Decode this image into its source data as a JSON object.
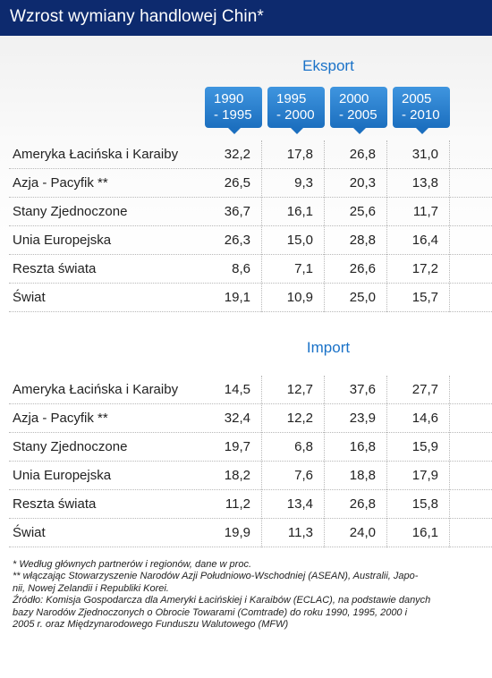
{
  "title": "Wzrost wymiany handlowej Chin*",
  "chart_data": {
    "type": "table",
    "periods": [
      "1990\n- 1995",
      "1995\n- 2000",
      "2000\n- 2005",
      "2005\n- 2010"
    ],
    "sections": [
      {
        "name": "Eksport",
        "rows": [
          {
            "label": "Ameryka Łacińska i Karaiby",
            "values": [
              "32,2",
              "17,8",
              "26,8",
              "31,0"
            ]
          },
          {
            "label": "Azja - Pacyfik **",
            "values": [
              "26,5",
              "9,3",
              "20,3",
              "13,8"
            ]
          },
          {
            "label": "Stany Zjednoczone",
            "values": [
              "36,7",
              "16,1",
              "25,6",
              "11,7"
            ]
          },
          {
            "label": "Unia Europejska",
            "values": [
              "26,3",
              "15,0",
              "28,8",
              "16,4"
            ]
          },
          {
            "label": "Reszta świata",
            "values": [
              "8,6",
              "7,1",
              "26,6",
              "17,2"
            ]
          },
          {
            "label": "Świat",
            "values": [
              "19,1",
              "10,9",
              "25,0",
              "15,7"
            ]
          }
        ]
      },
      {
        "name": "Import",
        "rows": [
          {
            "label": "Ameryka Łacińska i Karaiby",
            "values": [
              "14,5",
              "12,7",
              "37,6",
              "27,7"
            ]
          },
          {
            "label": "Azja - Pacyfik **",
            "values": [
              "32,4",
              "12,2",
              "23,9",
              "14,6"
            ]
          },
          {
            "label": "Stany Zjednoczone",
            "values": [
              "19,7",
              "6,8",
              "16,8",
              "15,9"
            ]
          },
          {
            "label": "Unia Europejska",
            "values": [
              "18,2",
              "7,6",
              "18,8",
              "17,9"
            ]
          },
          {
            "label": "Reszta świata",
            "values": [
              "11,2",
              "13,4",
              "26,8",
              "15,8"
            ]
          },
          {
            "label": "Świat",
            "values": [
              "19,9",
              "11,3",
              "24,0",
              "16,1"
            ]
          }
        ]
      }
    ]
  },
  "notes": [
    "* Według głównych partnerów i regionów, dane w proc.",
    "** włączając Stowarzyszenie Narodów Azji Południowo-Wschodniej (ASEAN), Australii, Japo-\nnii, Nowej Zelandii i Republiki Korei.",
    "Źródło: Komisja Gospodarcza dla Ameryki Łacińskiej i Karaibów (ECLAC), na podstawie danych\nbazy Narodów Zjednoczonych o Obrocie Towarami (Comtrade) do roku 1990, 1995, 2000 i\n2005 r. oraz Międzynarodowego Funduszu Walutowego (MFW)"
  ],
  "colors": {
    "header_bg": "#0d2a6e",
    "accent": "#1a72c8",
    "period_badge": "#2a80d0"
  }
}
